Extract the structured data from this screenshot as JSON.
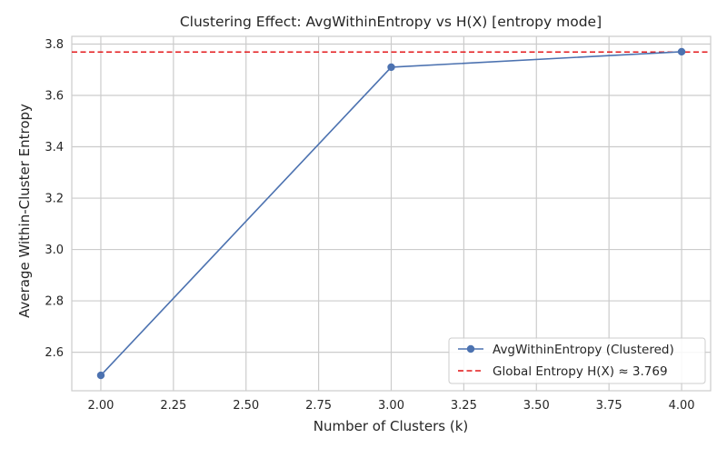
{
  "chart_data": {
    "type": "line",
    "title": "Clustering Effect: AvgWithinEntropy vs H(X) [entropy mode]",
    "xlabel": "Number of Clusters (k)",
    "ylabel": "Average Within-Cluster Entropy",
    "xlim": [
      1.9,
      4.1
    ],
    "ylim": [
      2.45,
      3.83
    ],
    "x_ticks": [
      2.0,
      2.25,
      2.5,
      2.75,
      3.0,
      3.25,
      3.5,
      3.75,
      4.0
    ],
    "x_tick_labels": [
      "2.00",
      "2.25",
      "2.50",
      "2.75",
      "3.00",
      "3.25",
      "3.50",
      "3.75",
      "4.00"
    ],
    "y_ticks": [
      2.6,
      2.8,
      3.0,
      3.2,
      3.4,
      3.6,
      3.8
    ],
    "y_tick_labels": [
      "2.6",
      "2.8",
      "3.0",
      "3.2",
      "3.4",
      "3.6",
      "3.8"
    ],
    "grid": true,
    "legend_position": "lower-right",
    "series": [
      {
        "name": "AvgWithinEntropy (Clustered)",
        "x": [
          2,
          3,
          4
        ],
        "y": [
          2.51,
          3.71,
          3.77
        ],
        "color": "#4c72b0",
        "marker": "circle",
        "style": "solid"
      }
    ],
    "reference_lines": [
      {
        "name": "Global Entropy H(X) ≈ 3.769",
        "y": 3.769,
        "color": "#e31a1c",
        "style": "dashed"
      }
    ]
  }
}
